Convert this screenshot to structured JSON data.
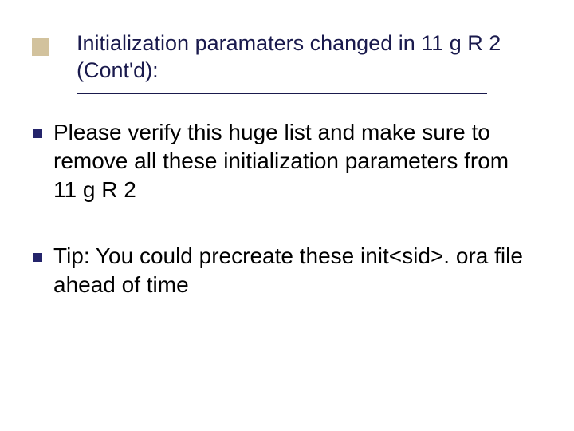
{
  "slide": {
    "title": "Initialization paramaters changed in 11 g R 2 (Cont'd):",
    "accent_color": "#d2c29d",
    "title_color": "#1a1a4d",
    "underline_color": "#1a1a4d",
    "bullet_color": "#24246b",
    "text_color": "#000000",
    "background_color": "#ffffff",
    "title_fontsize": 27,
    "body_fontsize": 28,
    "bullets": [
      {
        "text": "Please verify this huge list and make sure to remove all these initialization parameters from 11 g R 2"
      },
      {
        "text": "Tip: You could precreate these init<sid>. ora file ahead of time"
      }
    ]
  }
}
